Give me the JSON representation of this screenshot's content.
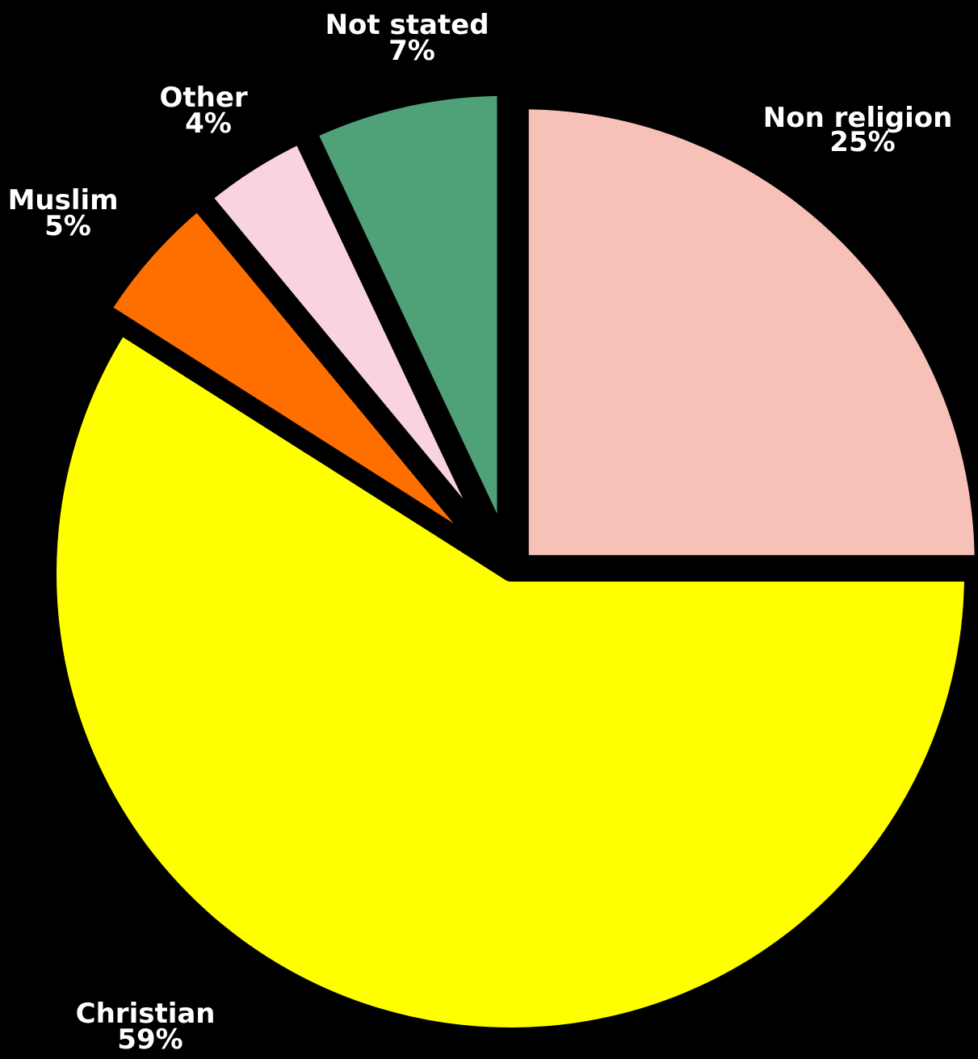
{
  "chart_data": {
    "type": "pie",
    "start": "top-clockwise",
    "slices": [
      {
        "name": "Non religion",
        "label": "25%",
        "value": 25,
        "color": "#f8c1b8",
        "offset": 18
      },
      {
        "name": "Christian",
        "label": "59%",
        "value": 59,
        "color": "#ffff00",
        "offset": 0
      },
      {
        "name": "Muslim",
        "label": "5%",
        "value": 5,
        "color": "#ff6f00",
        "offset": 30
      },
      {
        "name": "Other",
        "label": "4%",
        "value": 4,
        "color": "#f9d3df",
        "offset": 30
      },
      {
        "name": "Not stated",
        "label": "7%",
        "value": 7,
        "color": "#4fa178",
        "offset": 30
      }
    ]
  }
}
